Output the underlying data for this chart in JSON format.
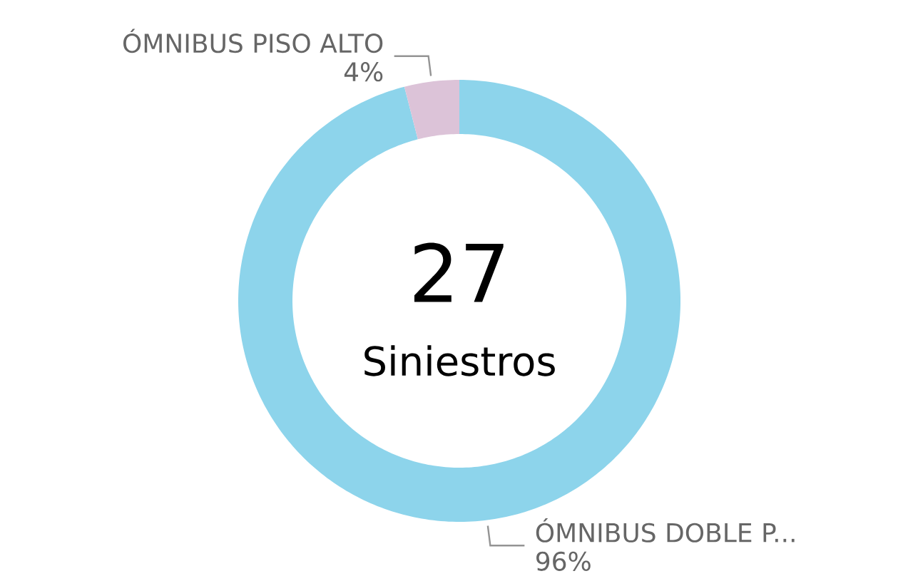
{
  "chart_data": {
    "type": "donut",
    "categories": [
      "ÓMNIBUS DOBLE P...",
      "ÓMNIBUS PISO ALTO"
    ],
    "values": [
      96,
      4
    ],
    "colors": [
      "#8dd4eb",
      "#dcc3d8"
    ],
    "value_labels": [
      "96%",
      "4%"
    ],
    "annotations": [
      "27",
      "Siniestros"
    ]
  }
}
